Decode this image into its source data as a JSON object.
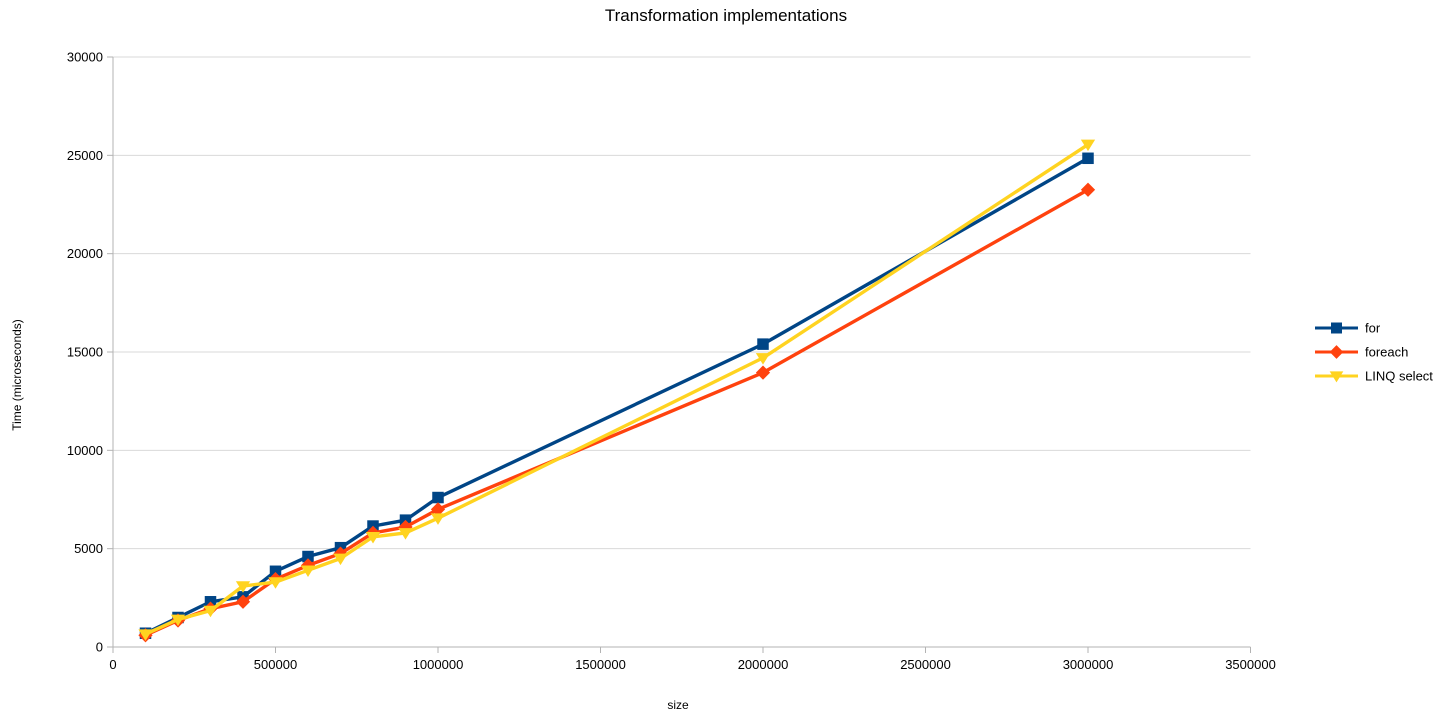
{
  "chart_data": {
    "type": "line",
    "title": "Transformation implementations",
    "xlabel": "size",
    "ylabel": "Time (microseconds)",
    "xlim": [
      0,
      3500000
    ],
    "ylim": [
      0,
      30000
    ],
    "grid": "horizontal",
    "legend_position": "right",
    "xticks": [
      {
        "value": 0,
        "label": "0"
      },
      {
        "value": 500000,
        "label": "500000"
      },
      {
        "value": 1000000,
        "label": "1000000"
      },
      {
        "value": 1500000,
        "label": "1500000"
      },
      {
        "value": 2000000,
        "label": "2000000"
      },
      {
        "value": 2500000,
        "label": "2500000"
      },
      {
        "value": 3000000,
        "label": "3000000"
      },
      {
        "value": 3500000,
        "label": "3500000"
      }
    ],
    "yticks": [
      {
        "value": 0,
        "label": "0"
      },
      {
        "value": 5000,
        "label": "5000"
      },
      {
        "value": 10000,
        "label": "10000"
      },
      {
        "value": 15000,
        "label": "15000"
      },
      {
        "value": 20000,
        "label": "20000"
      },
      {
        "value": 25000,
        "label": "25000"
      },
      {
        "value": 30000,
        "label": "30000"
      }
    ],
    "x": [
      100000,
      200000,
      300000,
      400000,
      500000,
      600000,
      700000,
      800000,
      900000,
      1000000,
      2000000,
      3000000
    ],
    "series": [
      {
        "name": "for",
        "color": "#004586",
        "marker": "square",
        "values": [
          700,
          1500,
          2300,
          2550,
          3850,
          4600,
          5050,
          6150,
          6450,
          7600,
          15400,
          24850
        ]
      },
      {
        "name": "foreach",
        "color": "#ff420e",
        "marker": "diamond",
        "values": [
          600,
          1350,
          1950,
          2300,
          3450,
          4150,
          4750,
          5800,
          6100,
          7000,
          13950,
          23250
        ]
      },
      {
        "name": "LINQ select",
        "color": "#ffd320",
        "marker": "triangle-down",
        "values": [
          650,
          1400,
          1850,
          3100,
          3300,
          3900,
          4500,
          5600,
          5800,
          6550,
          14700,
          25550
        ]
      }
    ],
    "colors": {
      "gridline": "#d9d9d9",
      "axis": "#b3b3b3",
      "text": "#000000",
      "background": "#ffffff"
    }
  }
}
